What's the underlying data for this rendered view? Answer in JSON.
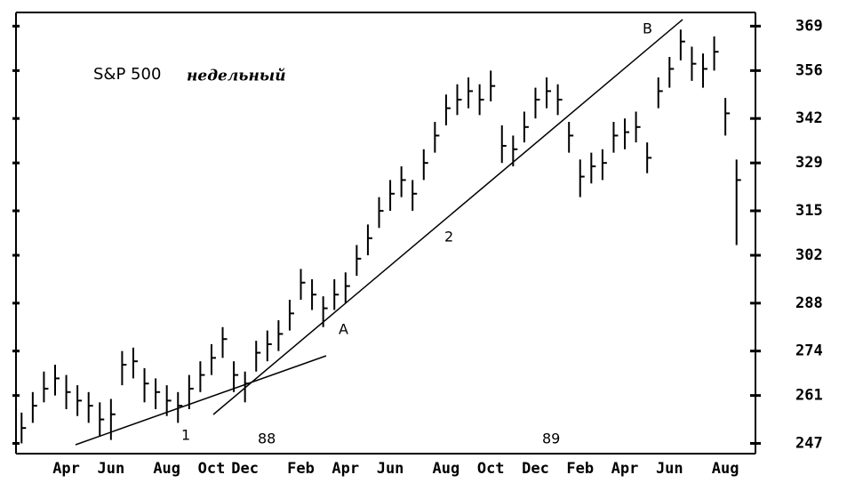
{
  "chart_data": {
    "type": "hlc",
    "title": "S&P 500",
    "subtitle": "недельный",
    "annotations": [
      "A",
      "B",
      "1",
      "2",
      "88",
      "89"
    ],
    "categories": [
      null,
      null,
      null,
      null,
      "Apr",
      null,
      null,
      null,
      "Jun",
      null,
      null,
      null,
      null,
      "Aug",
      null,
      null,
      null,
      "Oct",
      null,
      null,
      "Dec",
      null,
      null,
      null,
      null,
      "Feb",
      null,
      null,
      null,
      "Apr",
      null,
      null,
      null,
      "Jun",
      null,
      null,
      null,
      null,
      "Aug",
      null,
      null,
      null,
      "Oct",
      null,
      null,
      null,
      "Dec",
      null,
      null,
      null,
      "Feb",
      null,
      null,
      null,
      "Apr",
      null,
      null,
      null,
      "Jun",
      null,
      null,
      null,
      null,
      "Aug",
      null
    ],
    "high": [
      256,
      262,
      268,
      270,
      267,
      264,
      262,
      259,
      260,
      274,
      275,
      269,
      266,
      264,
      262,
      267,
      271,
      276,
      281,
      271,
      268,
      277,
      280,
      283,
      289,
      298,
      295,
      290,
      295,
      297,
      305,
      311,
      319,
      324,
      328,
      324,
      333,
      341,
      349,
      352,
      354,
      352,
      356,
      340,
      337,
      344,
      351,
      354,
      352,
      341,
      330,
      332,
      333,
      341,
      342,
      344,
      335,
      354,
      360,
      368,
      363,
      361,
      366,
      348,
      330
    ],
    "low": [
      247,
      253,
      259,
      261,
      257,
      255,
      253,
      249,
      248,
      264,
      266,
      259,
      257,
      255,
      253,
      257,
      262,
      267,
      272,
      262,
      259,
      268,
      271,
      274,
      280,
      289,
      286,
      281,
      286,
      288,
      296,
      302,
      310,
      315,
      319,
      315,
      324,
      332,
      340,
      343,
      345,
      343,
      347,
      329,
      328,
      335,
      342,
      345,
      343,
      332,
      319,
      323,
      324,
      332,
      333,
      335,
      326,
      345,
      351,
      359,
      353,
      351,
      356,
      337,
      305
    ],
    "close": [
      251.5,
      258,
      263,
      266,
      262,
      259.5,
      258,
      254,
      255.5,
      270,
      271,
      264.5,
      262,
      259.5,
      258,
      263,
      267,
      272,
      277.5,
      267,
      264.5,
      273.5,
      276,
      279,
      285,
      294,
      290.5,
      286.5,
      290.5,
      293,
      301,
      307,
      315,
      320,
      324,
      320,
      329,
      337,
      345,
      347.5,
      350,
      347.5,
      351.5,
      334,
      333,
      339.5,
      347.5,
      350,
      347.5,
      337,
      325,
      328,
      329,
      337,
      338,
      339.5,
      330.5,
      350,
      356.5,
      364.5,
      358,
      356.5,
      361.5,
      343.5,
      324
    ],
    "color": "#000000",
    "ylim": [
      244,
      373
    ],
    "yticks": [
      247,
      261,
      274,
      288,
      302,
      315,
      329,
      342,
      356,
      369
    ]
  }
}
